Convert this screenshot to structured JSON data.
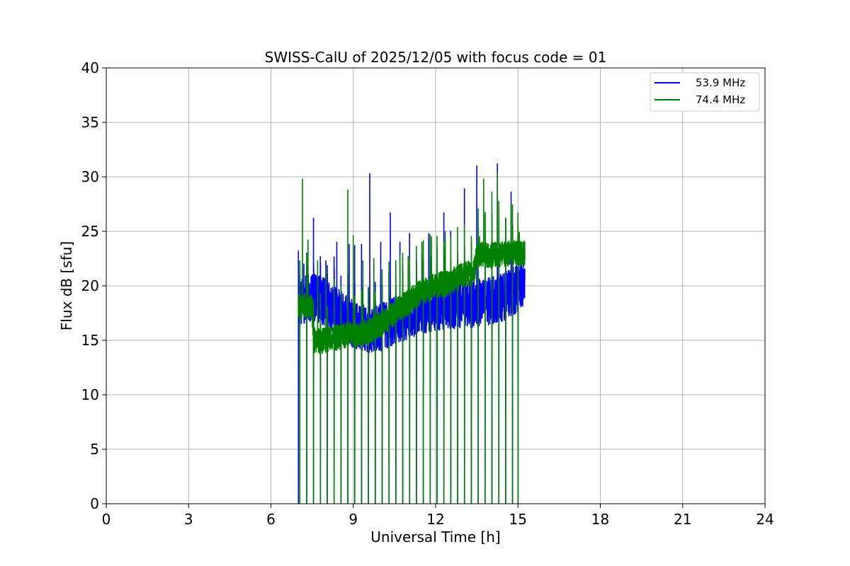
{
  "chart_data": {
    "type": "line",
    "title": "SWISS-CalU of 2025/12/05 with focus code = 01",
    "xlabel": "Universal Time [h]",
    "ylabel": "Flux dB [sfu]",
    "xlim": [
      0,
      24
    ],
    "ylim": [
      0,
      40
    ],
    "xticks": [
      0,
      3,
      6,
      9,
      12,
      15,
      18,
      21,
      24
    ],
    "yticks": [
      0,
      5,
      10,
      15,
      20,
      25,
      30,
      35,
      40
    ],
    "xtick_labels": [
      "0",
      "3",
      "6",
      "9",
      "12",
      "15",
      "18",
      "21",
      "24"
    ],
    "ytick_labels": [
      "0",
      "5",
      "10",
      "15",
      "20",
      "25",
      "30",
      "35",
      "40"
    ],
    "grid": true,
    "legend_position": "top-right",
    "series": [
      {
        "name": "53.9 MHz",
        "color": "#0000ff",
        "t_start": 7.0,
        "t_end": 15.25,
        "calibration_dips_h": [
          7.0,
          7.3,
          7.55,
          7.8,
          8.05,
          8.3,
          8.55,
          8.8,
          9.05,
          9.3,
          9.55,
          9.8,
          10.05,
          10.3,
          10.55,
          10.8,
          11.05,
          11.3,
          11.55,
          11.8,
          12.05,
          12.3,
          12.55,
          12.8,
          13.05,
          13.3,
          13.55,
          13.8,
          14.05,
          14.3,
          14.55,
          14.8,
          15.0
        ],
        "baseline": [
          [
            7.0,
            18.5
          ],
          [
            7.5,
            19.0
          ],
          [
            8.0,
            18.5
          ],
          [
            8.5,
            17.5
          ],
          [
            9.0,
            16.5
          ],
          [
            9.5,
            16.0
          ],
          [
            10.0,
            16.2
          ],
          [
            10.5,
            16.8
          ],
          [
            11.0,
            17.3
          ],
          [
            11.5,
            17.8
          ],
          [
            12.0,
            18.0
          ],
          [
            12.5,
            18.2
          ],
          [
            13.0,
            18.3
          ],
          [
            13.5,
            18.4
          ],
          [
            14.0,
            18.6
          ],
          [
            14.5,
            19.0
          ],
          [
            15.0,
            19.8
          ],
          [
            15.25,
            20.2
          ]
        ],
        "spikes": [
          [
            7.2,
            22.0
          ],
          [
            7.55,
            26.2
          ],
          [
            8.0,
            22.3
          ],
          [
            8.4,
            24.0
          ],
          [
            8.85,
            23.8
          ],
          [
            9.05,
            23.7
          ],
          [
            9.3,
            23.8
          ],
          [
            9.6,
            30.3
          ],
          [
            10.0,
            24.0
          ],
          [
            10.35,
            26.7
          ],
          [
            10.7,
            24.0
          ],
          [
            11.05,
            24.8
          ],
          [
            11.5,
            23.0
          ],
          [
            11.75,
            24.8
          ],
          [
            12.3,
            26.7
          ],
          [
            12.55,
            25.0
          ],
          [
            13.05,
            28.9
          ],
          [
            13.5,
            31.0
          ],
          [
            14.05,
            24.0
          ],
          [
            14.25,
            31.2
          ],
          [
            14.75,
            28.6
          ]
        ]
      },
      {
        "name": "74.4 MHz",
        "color": "#008000",
        "t_start": 7.0,
        "t_end": 15.25,
        "calibration_dips_h": [
          7.05,
          7.3,
          7.55,
          7.8,
          8.05,
          8.3,
          8.55,
          8.8,
          9.05,
          9.3,
          9.55,
          9.8,
          10.05,
          10.3,
          10.55,
          10.8,
          11.05,
          11.3,
          11.55,
          11.8,
          12.05,
          12.3,
          12.55,
          12.8,
          13.05,
          13.3,
          13.55,
          13.8,
          14.05,
          14.3,
          14.55,
          14.8,
          15.0
        ],
        "baseline": [
          [
            7.0,
            18.0
          ],
          [
            7.2,
            18.2
          ],
          [
            7.5,
            18.0
          ],
          [
            7.55,
            15.0
          ],
          [
            8.0,
            15.0
          ],
          [
            8.5,
            15.3
          ],
          [
            9.0,
            15.6
          ],
          [
            9.5,
            15.7
          ],
          [
            10.0,
            16.5
          ],
          [
            10.5,
            17.5
          ],
          [
            11.0,
            18.5
          ],
          [
            11.5,
            19.5
          ],
          [
            12.0,
            20.0
          ],
          [
            12.5,
            20.3
          ],
          [
            13.0,
            21.0
          ],
          [
            13.4,
            21.3
          ],
          [
            13.5,
            23.0
          ],
          [
            14.0,
            22.8
          ],
          [
            14.5,
            23.0
          ],
          [
            15.0,
            23.0
          ],
          [
            15.25,
            23.0
          ]
        ],
        "spikes": [
          [
            7.05,
            22.3
          ],
          [
            7.15,
            29.8
          ],
          [
            7.35,
            24.2
          ],
          [
            7.7,
            22.3
          ],
          [
            8.0,
            21.8
          ],
          [
            8.3,
            20.6
          ],
          [
            8.8,
            28.8
          ],
          [
            9.0,
            24.6
          ],
          [
            9.35,
            22.3
          ],
          [
            9.75,
            22.5
          ],
          [
            10.3,
            22.2
          ],
          [
            10.7,
            22.8
          ],
          [
            11.0,
            22.7
          ],
          [
            11.5,
            24.0
          ],
          [
            11.85,
            24.5
          ],
          [
            12.35,
            25.0
          ],
          [
            12.8,
            23.5
          ],
          [
            13.25,
            22.0
          ],
          [
            13.6,
            24.5
          ],
          [
            13.75,
            29.8
          ],
          [
            14.05,
            28.6
          ],
          [
            14.25,
            30.4
          ],
          [
            14.75,
            27.5
          ],
          [
            15.05,
            24.9
          ]
        ]
      }
    ]
  }
}
